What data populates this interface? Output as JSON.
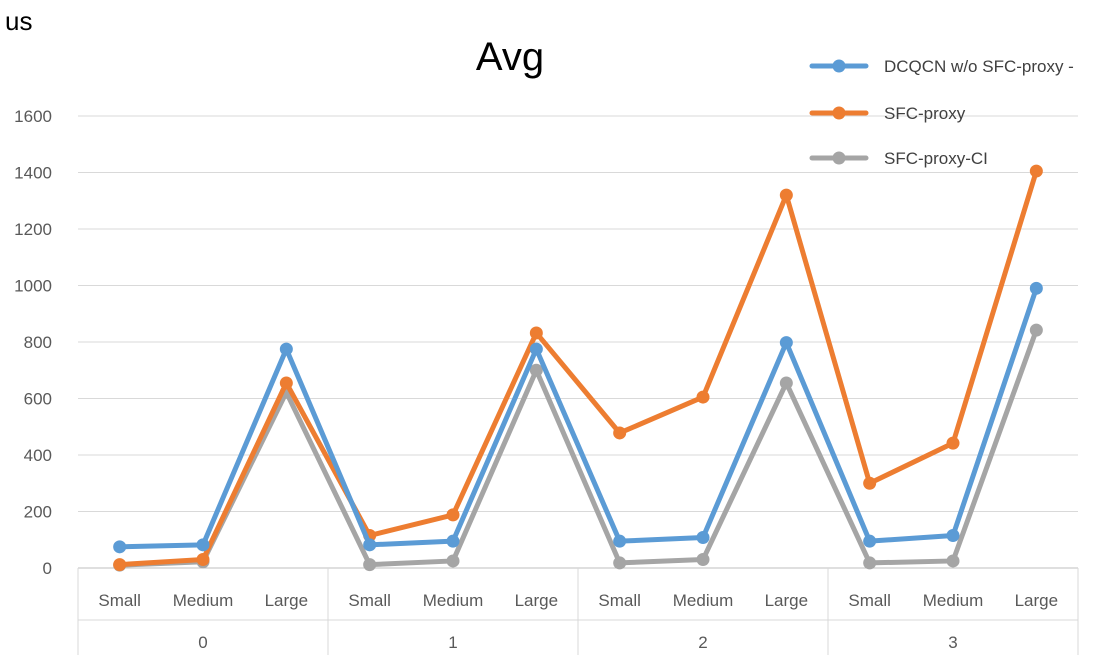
{
  "chart_data": {
    "type": "line",
    "title": "Avg",
    "ylabel": "us",
    "ylim": [
      0,
      1600
    ],
    "yticks": [
      0,
      200,
      400,
      600,
      800,
      1000,
      1200,
      1400,
      1600
    ],
    "grid": true,
    "legend_position": "top-right",
    "groups": [
      "0",
      "1",
      "2",
      "3"
    ],
    "categories": [
      "Small",
      "Medium",
      "Large",
      "Small",
      "Medium",
      "Large",
      "Small",
      "Medium",
      "Large",
      "Small",
      "Medium",
      "Large"
    ],
    "series": [
      {
        "name": "DCQCN w/o SFC-proxy -",
        "color": "#5b9bd5",
        "values": [
          75,
          82,
          775,
          82,
          95,
          775,
          95,
          108,
          798,
          95,
          115,
          990
        ]
      },
      {
        "name": "SFC-proxy",
        "color": "#ed7d31",
        "values": [
          12,
          30,
          655,
          115,
          188,
          832,
          478,
          605,
          1320,
          300,
          442,
          1405
        ]
      },
      {
        "name": "SFC-proxy-CI",
        "color": "#a5a5a5",
        "values": [
          10,
          22,
          622,
          12,
          25,
          700,
          18,
          30,
          655,
          18,
          25,
          842
        ]
      }
    ]
  }
}
